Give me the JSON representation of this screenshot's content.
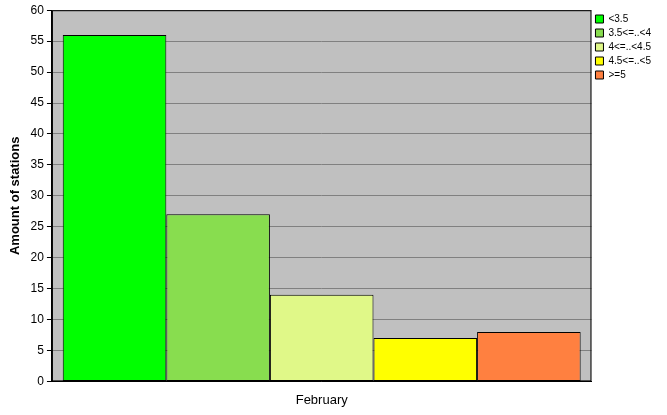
{
  "chart_data": {
    "type": "bar",
    "categories": [
      "February"
    ],
    "series": [
      {
        "name": "<3.5",
        "color": "#00ff00",
        "values": [
          56
        ]
      },
      {
        "name": "3.5<=..<4",
        "color": "#88dd4f",
        "values": [
          27
        ]
      },
      {
        "name": "4<=..<4.5",
        "color": "#e0f888",
        "values": [
          14
        ]
      },
      {
        "name": "4.5<=..<5",
        "color": "#ffff00",
        "values": [
          7
        ]
      },
      {
        "name": ">=5",
        "color": "#ff8040",
        "values": [
          8
        ]
      }
    ],
    "ylabel": "Amount of stations",
    "ylim": [
      0,
      60
    ],
    "yticks": [
      0,
      5,
      10,
      15,
      20,
      25,
      30,
      35,
      40,
      45,
      50,
      55,
      60
    ],
    "grid": true,
    "legend": "top right"
  }
}
